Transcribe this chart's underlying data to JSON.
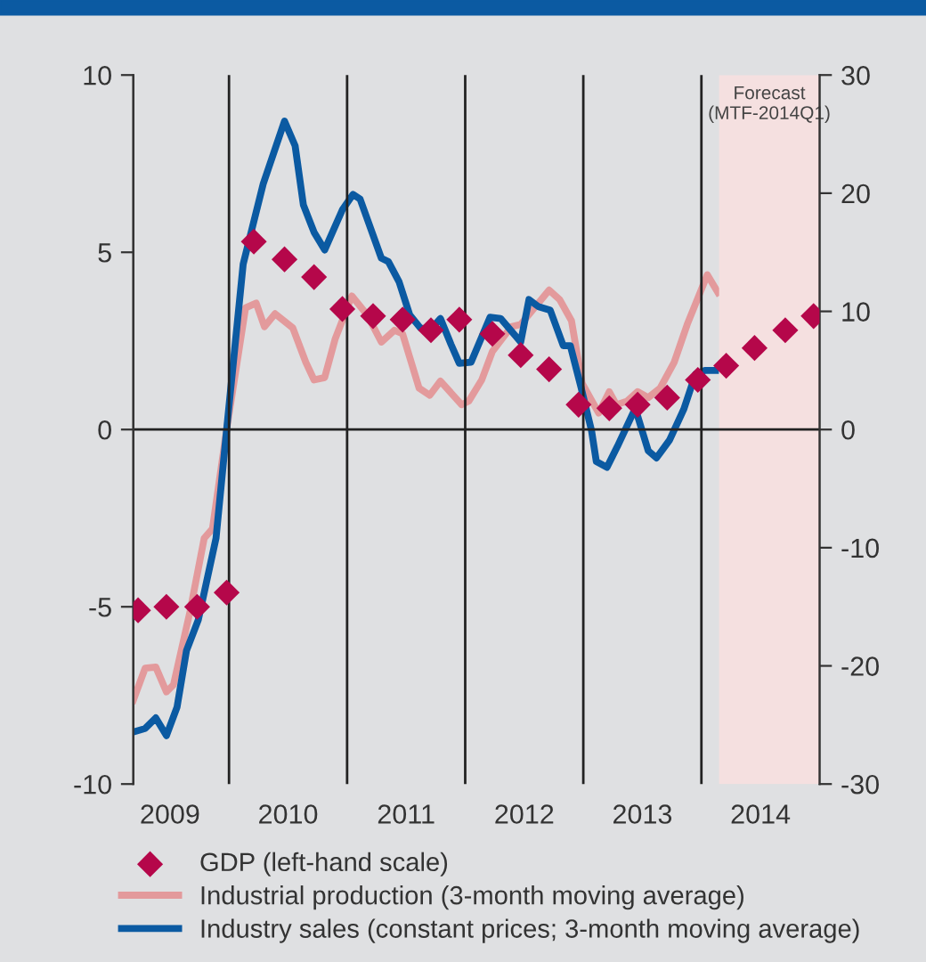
{
  "chart_data": {
    "type": "line",
    "xlim": [
      2009.19,
      2015.0
    ],
    "xticks": [
      {
        "value": 2009.5,
        "label": "2009"
      },
      {
        "value": 2010.5,
        "label": "2010"
      },
      {
        "value": 2011.5,
        "label": "2011"
      },
      {
        "value": 2012.5,
        "label": "2012"
      },
      {
        "value": 2013.5,
        "label": "2013"
      },
      {
        "value": 2014.5,
        "label": "2014"
      }
    ],
    "ylim": [
      -10,
      10
    ],
    "yticks": [
      -10,
      -5,
      0,
      5,
      10
    ],
    "y2lim": [
      -30,
      30
    ],
    "y2ticks": [
      -30,
      -20,
      -10,
      0,
      10,
      20,
      30
    ],
    "grid": false,
    "legend": "bottom",
    "ref_lines": [
      {
        "axis": "y",
        "value": 0,
        "color": "#222222"
      },
      {
        "axis": "x",
        "value": 2010,
        "color": "#222222"
      },
      {
        "axis": "x",
        "value": 2011,
        "color": "#222222"
      },
      {
        "axis": "x",
        "value": 2012,
        "color": "#222222"
      },
      {
        "axis": "x",
        "value": 2013,
        "color": "#222222"
      },
      {
        "axis": "x",
        "value": 2014,
        "color": "#222222"
      }
    ],
    "bands": [
      {
        "axis": "x",
        "from": 2014.15,
        "to": 2015.0,
        "label": "Forecast\n(MTF-2014Q1)",
        "color": "#f5e0e0"
      }
    ],
    "series": [
      {
        "name": "GDP (left-hand scale)",
        "type": "scatter",
        "marker": "diamond",
        "axis": "y",
        "color": "#b5074a",
        "x": [
          2009.23,
          2009.47,
          2009.73,
          2009.98,
          2010.21,
          2010.47,
          2010.72,
          2010.96,
          2011.22,
          2011.47,
          2011.71,
          2011.95,
          2012.23,
          2012.47,
          2012.71,
          2012.96,
          2013.22,
          2013.46,
          2013.71,
          2013.97,
          2014.21,
          2014.45,
          2014.71,
          2014.95
        ],
        "values": [
          -5.1,
          -5.0,
          -5.0,
          -4.6,
          5.3,
          4.8,
          4.3,
          3.4,
          3.2,
          3.1,
          2.8,
          3.1,
          2.7,
          2.1,
          1.7,
          0.7,
          0.6,
          0.7,
          0.9,
          1.4,
          1.8,
          2.3,
          2.8,
          3.2
        ]
      },
      {
        "name": "Industrial production (3-month moving average)",
        "axis": "y2",
        "color": "#e39a9c",
        "x": [
          2009.19,
          2009.29,
          2009.38,
          2009.47,
          2009.53,
          2009.67,
          2009.79,
          2009.86,
          2009.98,
          2010.14,
          2010.23,
          2010.3,
          2010.39,
          2010.54,
          2010.65,
          2010.72,
          2010.81,
          2010.9,
          2011.04,
          2011.17,
          2011.29,
          2011.4,
          2011.47,
          2011.61,
          2011.7,
          2011.79,
          2011.97,
          2012.03,
          2012.14,
          2012.23,
          2012.39,
          2012.47,
          2012.71,
          2012.8,
          2012.9,
          2012.99,
          2013.13,
          2013.22,
          2013.28,
          2013.37,
          2013.46,
          2013.55,
          2013.65,
          2013.77,
          2013.88,
          2014.05,
          2014.14
        ],
        "values": [
          -22.9,
          -20.2,
          -20.1,
          -22.2,
          -21.6,
          -15.4,
          -9.2,
          -8.4,
          0,
          10.3,
          10.7,
          8.7,
          9.8,
          8.6,
          5.7,
          4.2,
          4.4,
          7.7,
          11.3,
          9.7,
          7.4,
          8.4,
          8.1,
          3.5,
          2.9,
          4.1,
          2.1,
          2.4,
          4.2,
          6.6,
          8.7,
          8.9,
          11.8,
          11.0,
          9.2,
          3.9,
          1.4,
          3.2,
          2.1,
          2.4,
          3.2,
          2.7,
          3.5,
          5.7,
          8.9,
          13.1,
          11.6
        ]
      },
      {
        "name": "Industry sales (constant prices; 3-month moving average)",
        "axis": "y2",
        "color": "#0b5aa2",
        "x": [
          2009.19,
          2009.29,
          2009.38,
          2009.47,
          2009.56,
          2009.64,
          2009.74,
          2009.89,
          2009.98,
          2010.12,
          2010.29,
          2010.47,
          2010.56,
          2010.63,
          2010.72,
          2010.81,
          2010.96,
          2011.05,
          2011.11,
          2011.29,
          2011.35,
          2011.44,
          2011.53,
          2011.62,
          2011.7,
          2011.79,
          2011.88,
          2011.95,
          2012.05,
          2012.21,
          2012.3,
          2012.47,
          2012.54,
          2012.62,
          2012.72,
          2012.83,
          2012.89,
          2012.98,
          2013.07,
          2013.11,
          2013.2,
          2013.29,
          2013.44,
          2013.55,
          2013.62,
          2013.73,
          2013.85,
          2013.95,
          2014.03,
          2014.12
        ],
        "values": [
          -25.6,
          -25.3,
          -24.4,
          -25.9,
          -23.5,
          -18.7,
          -16.1,
          -9.2,
          0,
          14.0,
          20.8,
          26.1,
          24.0,
          19.0,
          16.7,
          15.2,
          18.6,
          19.9,
          19.5,
          14.5,
          14.2,
          12.5,
          9.7,
          8.6,
          8.4,
          9.4,
          7.2,
          5.6,
          5.7,
          9.5,
          9.4,
          7.4,
          11.0,
          10.4,
          10.1,
          7.1,
          7.1,
          3.6,
          -0.1,
          -2.7,
          -3.2,
          -1.4,
          1.8,
          -1.8,
          -2.4,
          -0.9,
          1.7,
          4.7,
          5.0,
          5.0
        ]
      }
    ]
  }
}
